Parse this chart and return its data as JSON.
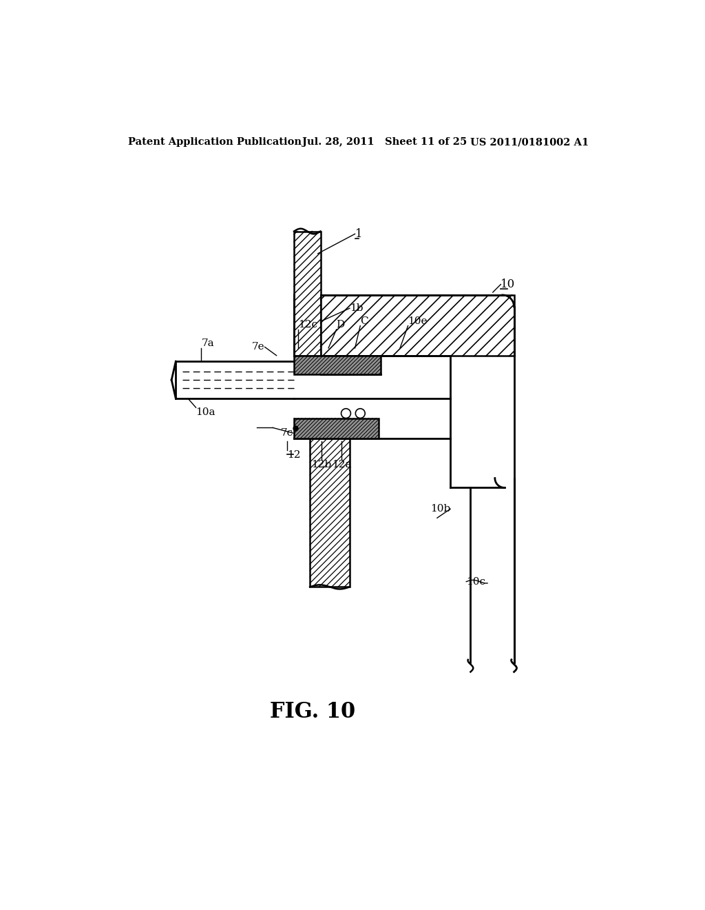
{
  "header_left": "Patent Application Publication",
  "header_mid": "Jul. 28, 2011   Sheet 11 of 25",
  "header_right": "US 2011/0181002 A1",
  "title": "FIG. 10",
  "bg_color": "#ffffff",
  "lc": "#000000"
}
